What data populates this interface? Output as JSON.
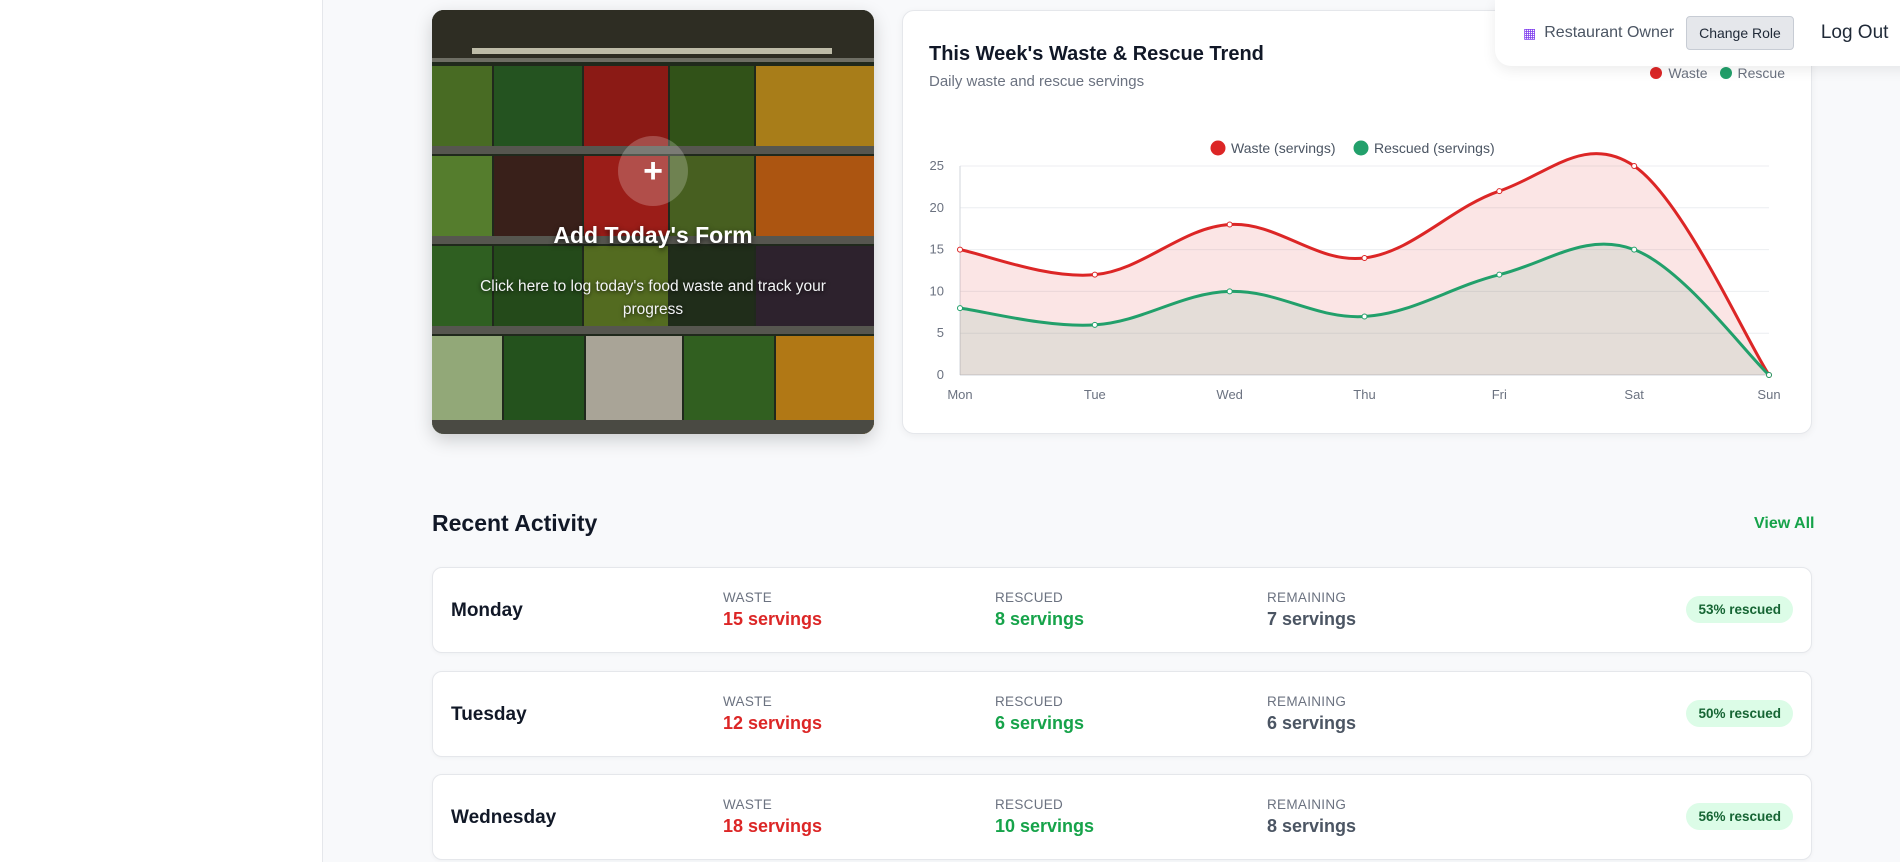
{
  "account": {
    "role_icon": "building-icon",
    "role": "Restaurant Owner",
    "change_role": "Change Role",
    "logout": "Log Out"
  },
  "add_form": {
    "icon": "plus-icon",
    "title": "Add Today's Form",
    "description": "Click here to log today's food waste and track your progress"
  },
  "chart_card": {
    "title": "This Week's Waste & Rescue Trend",
    "subtitle": "Daily waste and rescue servings",
    "legend_waste": "Waste",
    "legend_rescue": "Rescue"
  },
  "colors": {
    "waste": "#dc2626",
    "rescue": "#22a06b",
    "accent": "#16a34a"
  },
  "chart_data": {
    "type": "line",
    "title": "",
    "categories": [
      "Mon",
      "Tue",
      "Wed",
      "Thu",
      "Fri",
      "Sat",
      "Sun"
    ],
    "series": [
      {
        "name": "Waste (servings)",
        "values": [
          15,
          12,
          18,
          14,
          22,
          25,
          0
        ]
      },
      {
        "name": "Rescued (servings)",
        "values": [
          8,
          6,
          10,
          7,
          12,
          15,
          0
        ]
      }
    ],
    "ylim": [
      0,
      25
    ],
    "yticks": [
      0,
      5,
      10,
      15,
      20,
      25
    ],
    "grid": true,
    "legend": "top-center",
    "fill": true
  },
  "activity": {
    "title": "Recent Activity",
    "view_all": "View All",
    "labels": {
      "waste": "WASTE",
      "rescued": "RESCUED",
      "remaining": "REMAINING"
    },
    "rows": [
      {
        "day": "Monday",
        "waste": "15 servings",
        "rescued": "8 servings",
        "remaining": "7 servings",
        "badge": "53% rescued"
      },
      {
        "day": "Tuesday",
        "waste": "12 servings",
        "rescued": "6 servings",
        "remaining": "6 servings",
        "badge": "50% rescued"
      },
      {
        "day": "Wednesday",
        "waste": "18 servings",
        "rescued": "10 servings",
        "remaining": "8 servings",
        "badge": "56% rescued"
      }
    ]
  }
}
